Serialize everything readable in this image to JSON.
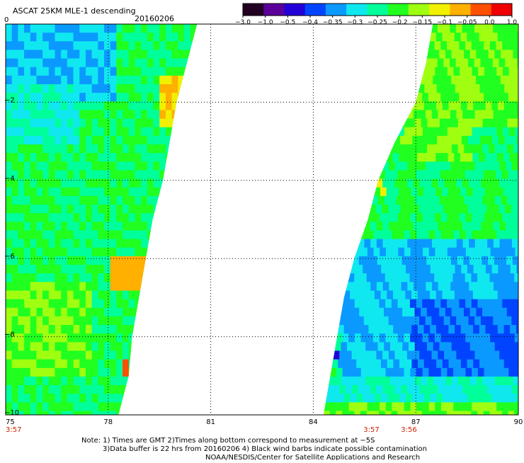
{
  "header": {
    "title": "ASCAT 25KM MLE-1 descending",
    "date": "20160206"
  },
  "colorbar": {
    "tick_labels": [
      "-3.0",
      "-1.0",
      "-0.5",
      "-0.4",
      "-0.35",
      "-0.3",
      "-0.25",
      "-0.2",
      "-0.15",
      "-0.1",
      "-0.05",
      "0.0",
      "1.0"
    ],
    "colors": [
      "#220022",
      "#5a009a",
      "#2200d8",
      "#0044ff",
      "#0a9aff",
      "#10e8f0",
      "#00ff9a",
      "#20ff20",
      "#a0ff10",
      "#f0f000",
      "#ffb000",
      "#ff5000",
      "#f00000"
    ]
  },
  "bottom_times": [
    {
      "label": "3:57",
      "lon": 75
    },
    {
      "label": "3:57",
      "lon": 85.7
    },
    {
      "label": "3:56",
      "lon": 86.8
    }
  ],
  "notes": {
    "line1": "Note: 1) Times are GMT 2)Times along bottom correspond to measurement at −5S",
    "line2": "3)Data buffer is 22 hrs from 20160206 4) Black wind barbs indicate possible contamination",
    "line3": "NOAA/NESDIS/Center for Satellite Applications and Research"
  },
  "chart_data": {
    "type": "heatmap",
    "title": "ASCAT 25KM MLE-1 descending",
    "subtitle": "20160206",
    "xlabel": "",
    "ylabel": "",
    "xlim": [
      75,
      90
    ],
    "ylim": [
      -10,
      0
    ],
    "x_ticks": [
      75,
      78,
      81,
      84,
      87,
      90
    ],
    "y_ticks": [
      0,
      -2,
      -4,
      -6,
      -8,
      -10
    ],
    "y_tick_labels": [
      "0",
      "-2",
      "-4",
      "-6",
      "-8",
      "-10"
    ],
    "grid": true,
    "grid_style": "dotted",
    "swaths": [
      {
        "name": "west-swath",
        "edge_left_lon": [
          [
            0,
            75
          ],
          [
            -10,
            75
          ]
        ],
        "edge_right_lon": [
          [
            0,
            80.6
          ],
          [
            -1,
            80.3
          ],
          [
            -2,
            80.0
          ],
          [
            -3,
            79.8
          ],
          [
            -4,
            79.6
          ],
          [
            -5,
            79.3
          ],
          [
            -6,
            79.1
          ],
          [
            -7,
            78.9
          ],
          [
            -8,
            78.7
          ],
          [
            -9,
            78.6
          ],
          [
            -10,
            78.3
          ]
        ],
        "regions": [
          {
            "lat": [
              0,
              -1.8
            ],
            "lon": [
              75,
              78.2
            ],
            "value": -0.35
          },
          {
            "lat": [
              -1.5,
              -3.5
            ],
            "lon": [
              75,
              77.0
            ],
            "value": -0.3
          },
          {
            "lat": [
              -3.0,
              -5.5
            ],
            "lon": [
              75,
              78.5
            ],
            "value": -0.25
          },
          {
            "lat": [
              -1.2,
              -2.5
            ],
            "lon": [
              79.4,
              80.2
            ],
            "value": -0.1
          },
          {
            "lat": [
              -5.8,
              -6.8
            ],
            "lon": [
              78.0,
              79.0
            ],
            "value": -0.05
          },
          {
            "lat": [
              -6.5,
              -9.0
            ],
            "lon": [
              75.0,
              77.5
            ],
            "value": -0.2
          },
          {
            "lat": [
              -8.8,
              -10
            ],
            "lon": [
              75.5,
              78.3
            ],
            "value": -0.25
          },
          {
            "lat": [
              -8.4,
              -8.8
            ],
            "lon": [
              78.3,
              78.6
            ],
            "value": 0.0
          }
        ]
      },
      {
        "name": "east-swath",
        "edge_left_lon": [
          [
            0,
            87.5
          ],
          [
            -1,
            87.3
          ],
          [
            -2,
            87.0
          ],
          [
            -3,
            86.4
          ],
          [
            -4,
            85.9
          ],
          [
            -5,
            85.6
          ],
          [
            -6,
            85.2
          ],
          [
            -7,
            84.9
          ],
          [
            -8,
            84.7
          ],
          [
            -9,
            84.5
          ],
          [
            -10,
            84.3
          ]
        ],
        "edge_right_lon": [
          [
            0,
            90
          ],
          [
            -10,
            90
          ]
        ],
        "regions": [
          {
            "lat": [
              0,
              -3.5
            ],
            "lon": [
              86.5,
              90
            ],
            "value": -0.2
          },
          {
            "lat": [
              -2.5,
              -5.5
            ],
            "lon": [
              88.5,
              90
            ],
            "value": -0.25
          },
          {
            "lat": [
              -5.5,
              -8.8
            ],
            "lon": [
              84.7,
              90
            ],
            "value": -0.35
          },
          {
            "lat": [
              -7.0,
              -8.8
            ],
            "lon": [
              86.8,
              90
            ],
            "value": -0.4
          },
          {
            "lat": [
              -8.8,
              -10
            ],
            "lon": [
              84.3,
              90
            ],
            "value": -0.3
          },
          {
            "lat": [
              -9.6,
              -10
            ],
            "lon": [
              84.3,
              90
            ],
            "value": -0.2
          },
          {
            "lat": [
              -3.8,
              -4.2
            ],
            "lon": [
              85.8,
              86.0
            ],
            "value": -0.1
          },
          {
            "lat": [
              -8.3,
              -8.5
            ],
            "lon": [
              84.5,
              84.7
            ],
            "value": -0.5
          }
        ]
      }
    ]
  }
}
